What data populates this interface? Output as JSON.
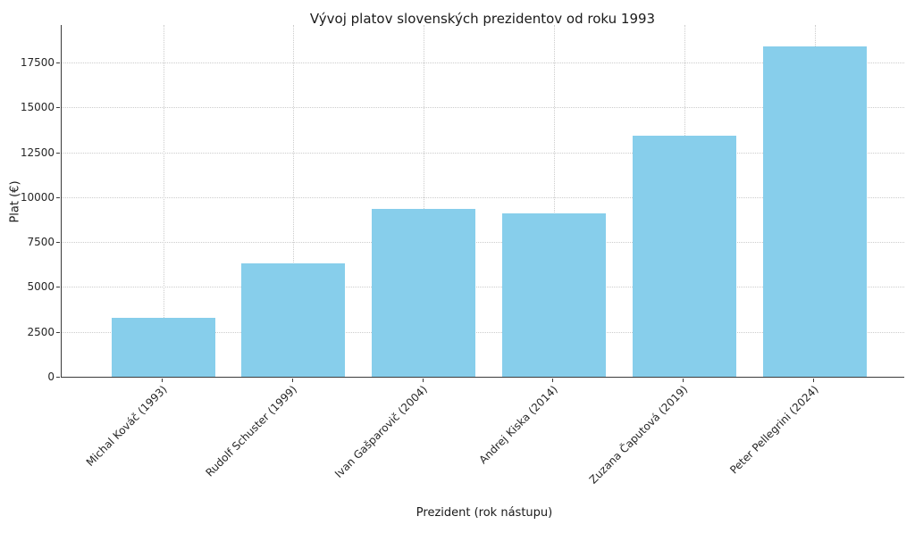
{
  "chart_data": {
    "type": "bar",
    "title": "Vývoj platov slovenských prezidentov od roku 1993",
    "xlabel": "Prezident (rok nástupu)",
    "ylabel": "Plat (€)",
    "categories": [
      "Michal Kováč (1993)",
      "Rudolf Schuster (1999)",
      "Ivan Gašparovič (2004)",
      "Andrej Kiska (2014)",
      "Zuzana Čaputová (2019)",
      "Peter Pellegrini (2024)"
    ],
    "values": [
      3300,
      6300,
      9350,
      9100,
      13450,
      18400
    ],
    "yticks": [
      0,
      2500,
      5000,
      7500,
      10000,
      12500,
      15000,
      17500
    ],
    "ylim": [
      0,
      19600
    ],
    "bar_color": "#87CEEB",
    "grid": true,
    "grid_color": "#cccccc",
    "grid_style": "dotted",
    "axis_color": "#3a3a3a",
    "background_color": "#ffffff",
    "legend_position": "none"
  }
}
